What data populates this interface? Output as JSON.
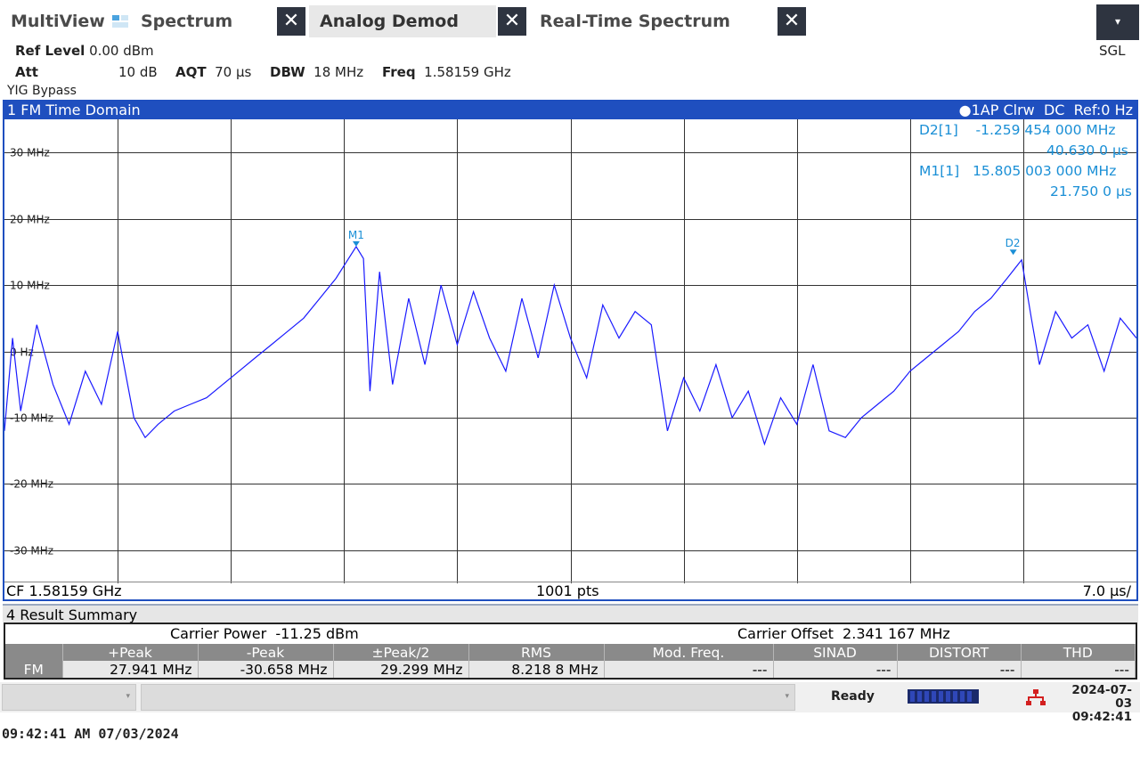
{
  "tabs": [
    {
      "label": "MultiView",
      "active": false
    },
    {
      "label": "Spectrum",
      "active": false
    },
    {
      "label": "Analog Demod",
      "active": true
    },
    {
      "label": "Real-Time Spectrum",
      "active": false
    }
  ],
  "close_glyph": "✕",
  "dropdown_glyph": "▾",
  "sgl_label": "SGL",
  "settings": {
    "ref_level_label": "Ref Level",
    "ref_level_value": "0.00 dBm",
    "att_label": "Att",
    "att_value": "10 dB",
    "aqt_label": "AQT",
    "aqt_value": "70 µs",
    "dbw_label": "DBW",
    "dbw_value": "18 MHz",
    "freq_label": "Freq",
    "freq_value": "1.58159 GHz",
    "yig": "YIG Bypass"
  },
  "diagram": {
    "title": "1 FM Time Domain",
    "trace_info": "1AP Clrw",
    "coupling": "DC",
    "ref": "Ref:0 Hz",
    "footer_left": "CF 1.58159 GHz",
    "footer_center": "1001 pts",
    "footer_right": "7.0 µs/",
    "markers": [
      {
        "label": "D2[1]",
        "value": "-1.259 454 000 MHz",
        "time": "40.630 0 µs"
      },
      {
        "label": "M1[1]",
        "value": "15.805 003 000 MHz",
        "time": "21.750 0 µs"
      }
    ],
    "marker_tags": [
      "M1",
      "D2"
    ]
  },
  "chart_data": {
    "type": "line",
    "title": "1 FM Time Domain",
    "xlabel": "",
    "ylabel": "",
    "x_unit": "µs",
    "xlim": [
      0,
      70
    ],
    "ylim": [
      -35,
      35
    ],
    "yticks": [
      "30 MHz",
      "20 MHz",
      "10 MHz",
      "0 Hz",
      "-10 MHz",
      "-20 MHz",
      "-30 MHz"
    ],
    "ytick_values": [
      30,
      20,
      10,
      0,
      -10,
      -20,
      -30
    ],
    "grid": true,
    "series": [
      {
        "color": "#1a1aff",
        "points": [
          [
            0,
            -12
          ],
          [
            0.5,
            2
          ],
          [
            1,
            -9
          ],
          [
            2,
            4
          ],
          [
            3,
            -5
          ],
          [
            4,
            -11
          ],
          [
            5,
            -3
          ],
          [
            6,
            -8
          ],
          [
            7,
            3
          ],
          [
            8,
            -10
          ],
          [
            8.7,
            -13
          ],
          [
            9.5,
            -11
          ],
          [
            10.5,
            -9
          ],
          [
            11.5,
            -8
          ],
          [
            12.5,
            -7
          ],
          [
            13.5,
            -5
          ],
          [
            14.5,
            -3
          ],
          [
            15.5,
            -1
          ],
          [
            16.5,
            1
          ],
          [
            17.5,
            3
          ],
          [
            18.5,
            5
          ],
          [
            19.5,
            8
          ],
          [
            20.5,
            11
          ],
          [
            21.75,
            15.8
          ],
          [
            22.2,
            14
          ],
          [
            22.6,
            -6
          ],
          [
            23.2,
            12
          ],
          [
            24,
            -5
          ],
          [
            25,
            8
          ],
          [
            26,
            -2
          ],
          [
            27,
            10
          ],
          [
            28,
            1
          ],
          [
            29,
            9
          ],
          [
            30,
            2
          ],
          [
            31,
            -3
          ],
          [
            32,
            8
          ],
          [
            33,
            -1
          ],
          [
            34,
            10
          ],
          [
            35,
            2
          ],
          [
            36,
            -4
          ],
          [
            37,
            7
          ],
          [
            38,
            2
          ],
          [
            39,
            6
          ],
          [
            40,
            4
          ],
          [
            41,
            -12
          ],
          [
            42,
            -4
          ],
          [
            43,
            -9
          ],
          [
            44,
            -2
          ],
          [
            45,
            -10
          ],
          [
            46,
            -6
          ],
          [
            47,
            -14
          ],
          [
            48,
            -7
          ],
          [
            49,
            -11
          ],
          [
            50,
            -2
          ],
          [
            51,
            -12
          ],
          [
            52,
            -13
          ],
          [
            53,
            -10
          ],
          [
            54,
            -8
          ],
          [
            55,
            -6
          ],
          [
            56,
            -3
          ],
          [
            57,
            -1
          ],
          [
            58,
            1
          ],
          [
            59,
            3
          ],
          [
            60,
            6
          ],
          [
            61,
            8
          ],
          [
            62,
            11
          ],
          [
            62.9,
            13.8
          ],
          [
            63.5,
            5
          ],
          [
            64,
            -2
          ],
          [
            65,
            6
          ],
          [
            66,
            2
          ],
          [
            67,
            4
          ],
          [
            68,
            -3
          ],
          [
            69,
            5
          ],
          [
            70,
            2
          ]
        ]
      }
    ],
    "markers": [
      {
        "label": "M1",
        "x": 21.75,
        "y": 15.805
      },
      {
        "label": "D2",
        "x": 62.38,
        "y": 14.546
      }
    ]
  },
  "result_summary": {
    "title": "4 Result Summary",
    "carrier_power_label": "Carrier Power",
    "carrier_power_value": "-11.25 dBm",
    "carrier_offset_label": "Carrier Offset",
    "carrier_offset_value": "2.341 167 MHz",
    "columns": [
      "",
      "+Peak",
      "-Peak",
      "±Peak/2",
      "RMS",
      "Mod. Freq.",
      "SINAD",
      "DISTORT",
      "THD"
    ],
    "rows": [
      {
        "label": "FM",
        "cells": [
          "27.941 MHz",
          "-30.658 MHz",
          "29.299 MHz",
          "8.218 8 MHz",
          "---",
          "---",
          "---",
          "---"
        ]
      }
    ]
  },
  "status": {
    "ready": "Ready",
    "date": "2024-07-03",
    "time": "09:42:41",
    "caret": "▾"
  },
  "stamp": "09:42:41 AM  07/03/2024",
  "colors": {
    "accent": "#1f4fbf",
    "trace": "#1a1aff",
    "marker": "#1a8fd6",
    "tab_close_bg": "#2e3440"
  }
}
